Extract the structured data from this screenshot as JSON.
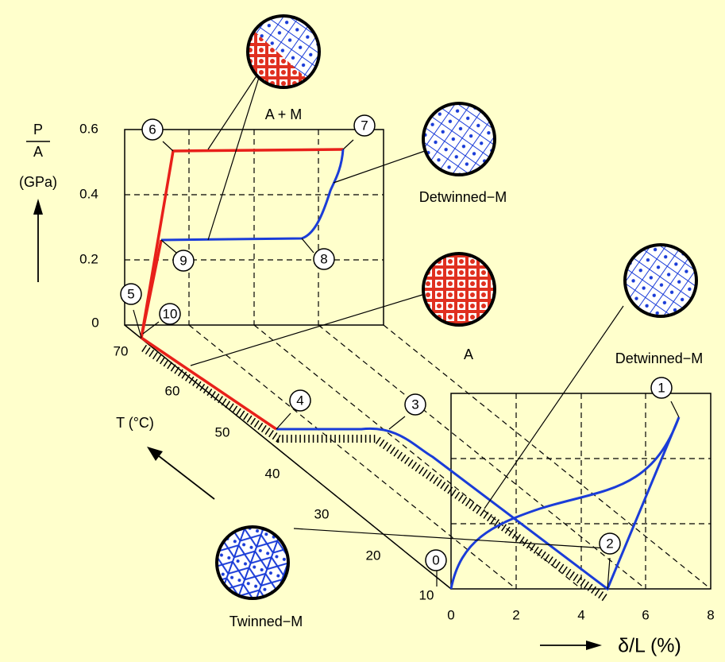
{
  "stress_axis": {
    "numerator": "P",
    "denominator": "A",
    "unit": "(GPa)",
    "ticks": [
      "0",
      "0.2",
      "0.4",
      "0.6"
    ]
  },
  "temperature_axis": {
    "label": "T (°C)",
    "ticks": [
      "70",
      "60",
      "50",
      "40",
      "30",
      "20",
      "10"
    ]
  },
  "strain_axis": {
    "label": "δ/L (%)",
    "ticks": [
      "0",
      "2",
      "4",
      "6",
      "8"
    ]
  },
  "points": [
    "0",
    "1",
    "2",
    "3",
    "4",
    "5",
    "6",
    "7",
    "8",
    "9",
    "10"
  ],
  "phases": [
    "A + M",
    "Detwinned−M",
    "A",
    "Detwinned−M",
    "Twinned−M"
  ]
}
